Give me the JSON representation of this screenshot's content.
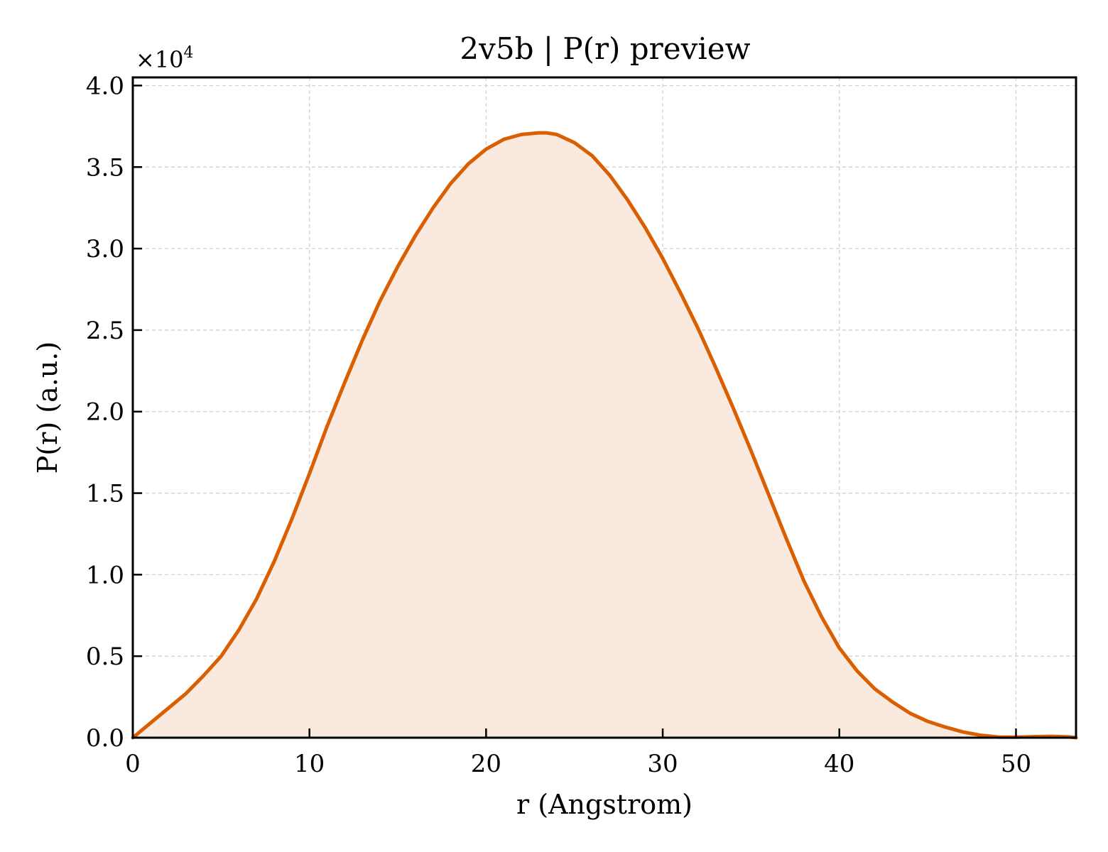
{
  "chart_data": {
    "type": "area",
    "title": "2v5b | P(r) preview",
    "xlabel": "r (Angstrom)",
    "ylabel": "P(r) (a.u.)",
    "y_multiplier_base": "×10",
    "y_multiplier_exp": "4",
    "xlim": [
      0,
      53.4
    ],
    "ylim": [
      0,
      4.05
    ],
    "y_scale_note": "values in units of 1e4",
    "xticks": [
      0,
      10,
      20,
      30,
      40,
      50
    ],
    "xtick_labels": [
      "0",
      "10",
      "20",
      "30",
      "40",
      "50"
    ],
    "yticks": [
      0,
      0.5,
      1,
      1.5,
      2,
      2.5,
      3,
      3.5,
      4
    ],
    "ytick_labels": [
      "0.0",
      "0.5",
      "1.0",
      "1.5",
      "2.0",
      "2.5",
      "3.0",
      "3.5",
      "4.0"
    ],
    "grid": true,
    "line_color": "#d95f02",
    "fill_color": "#f9e9de",
    "series": [
      {
        "x": [
          0,
          1,
          2,
          3,
          4,
          5,
          6,
          7,
          8,
          9,
          10,
          11,
          12,
          13,
          14,
          15,
          16,
          17,
          18,
          19,
          20,
          21,
          22,
          23,
          23.4,
          24,
          25,
          26,
          27,
          28,
          29,
          30,
          31,
          32,
          33,
          34,
          35,
          36,
          37,
          38,
          39,
          40,
          41,
          42,
          43,
          44,
          45,
          46,
          47,
          48,
          49,
          50,
          51,
          52,
          53,
          53.4
        ],
        "y": [
          0,
          0.09,
          0.18,
          0.27,
          0.38,
          0.5,
          0.66,
          0.85,
          1.08,
          1.34,
          1.62,
          1.91,
          2.18,
          2.44,
          2.68,
          2.89,
          3.08,
          3.25,
          3.4,
          3.52,
          3.61,
          3.67,
          3.7,
          3.71,
          3.71,
          3.7,
          3.65,
          3.57,
          3.45,
          3.3,
          3.13,
          2.94,
          2.73,
          2.51,
          2.27,
          2.02,
          1.76,
          1.49,
          1.22,
          0.96,
          0.74,
          0.55,
          0.41,
          0.3,
          0.22,
          0.15,
          0.1,
          0.065,
          0.035,
          0.015,
          0.004,
          0.003,
          0.006,
          0.008,
          0.005,
          0.0
        ]
      }
    ]
  }
}
